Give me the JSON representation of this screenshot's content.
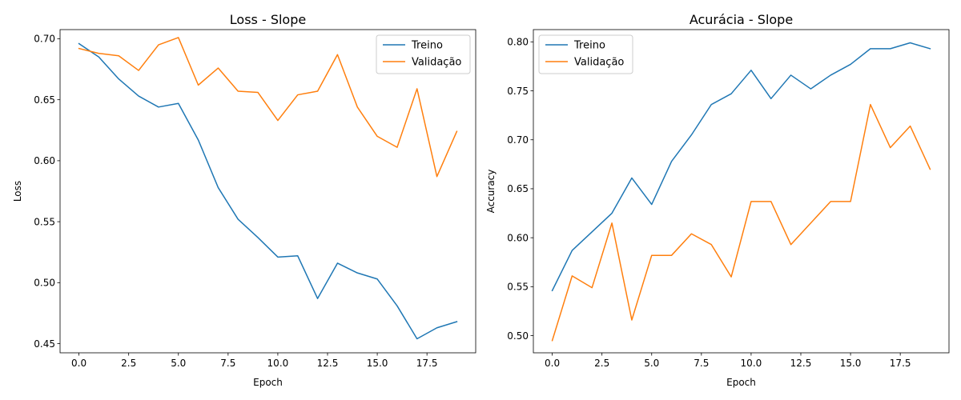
{
  "chart_data": [
    {
      "type": "line",
      "title": "Loss - Slope",
      "xlabel": "Epoch",
      "ylabel": "Loss",
      "xlim": [
        -0.95,
        19.95
      ],
      "ylim": [
        0.4425,
        0.7075
      ],
      "xticks": [
        0.0,
        2.5,
        5.0,
        7.5,
        10.0,
        12.5,
        15.0,
        17.5
      ],
      "xtick_labels": [
        "0.0",
        "2.5",
        "5.0",
        "7.5",
        "10.0",
        "12.5",
        "15.0",
        "17.5"
      ],
      "yticks": [
        0.45,
        0.5,
        0.55,
        0.6,
        0.65,
        0.7
      ],
      "ytick_labels": [
        "0.45",
        "0.50",
        "0.55",
        "0.60",
        "0.65",
        "0.70"
      ],
      "legend_position": "upper right",
      "grid": false,
      "x": [
        0,
        1,
        2,
        3,
        4,
        5,
        6,
        7,
        8,
        9,
        10,
        11,
        12,
        13,
        14,
        15,
        16,
        17,
        18,
        19
      ],
      "series": [
        {
          "name": "Treino",
          "color": "#1f77b4",
          "values": [
            0.696,
            0.685,
            0.667,
            0.653,
            0.644,
            0.647,
            0.617,
            0.578,
            0.552,
            0.537,
            0.521,
            0.522,
            0.487,
            0.516,
            0.508,
            0.503,
            0.481,
            0.454,
            0.463,
            0.468
          ]
        },
        {
          "name": "Validação",
          "color": "#ff7f0e",
          "values": [
            0.692,
            0.688,
            0.686,
            0.674,
            0.695,
            0.701,
            0.662,
            0.676,
            0.657,
            0.656,
            0.633,
            0.654,
            0.657,
            0.687,
            0.644,
            0.62,
            0.611,
            0.659,
            0.587,
            0.624
          ]
        }
      ]
    },
    {
      "type": "line",
      "title": "Acurácia - Slope",
      "xlabel": "Epoch",
      "ylabel": "Accuracy",
      "xlim": [
        -0.95,
        19.95
      ],
      "ylim": [
        0.4825,
        0.8125
      ],
      "xticks": [
        0.0,
        2.5,
        5.0,
        7.5,
        10.0,
        12.5,
        15.0,
        17.5
      ],
      "xtick_labels": [
        "0.0",
        "2.5",
        "5.0",
        "7.5",
        "10.0",
        "12.5",
        "15.0",
        "17.5"
      ],
      "yticks": [
        0.5,
        0.55,
        0.6,
        0.65,
        0.7,
        0.75,
        0.8
      ],
      "ytick_labels": [
        "0.50",
        "0.55",
        "0.60",
        "0.65",
        "0.70",
        "0.75",
        "0.80"
      ],
      "legend_position": "upper left",
      "grid": false,
      "x": [
        0,
        1,
        2,
        3,
        4,
        5,
        6,
        7,
        8,
        9,
        10,
        11,
        12,
        13,
        14,
        15,
        16,
        17,
        18,
        19
      ],
      "series": [
        {
          "name": "Treino",
          "color": "#1f77b4",
          "values": [
            0.546,
            0.587,
            0.606,
            0.625,
            0.661,
            0.634,
            0.678,
            0.705,
            0.736,
            0.747,
            0.771,
            0.742,
            0.766,
            0.752,
            0.766,
            0.777,
            0.793,
            0.793,
            0.799,
            0.793
          ]
        },
        {
          "name": "Validação",
          "color": "#ff7f0e",
          "values": [
            0.495,
            0.561,
            0.549,
            0.615,
            0.516,
            0.582,
            0.582,
            0.604,
            0.593,
            0.56,
            0.637,
            0.637,
            0.593,
            0.615,
            0.637,
            0.637,
            0.736,
            0.692,
            0.714,
            0.67
          ]
        }
      ]
    }
  ]
}
